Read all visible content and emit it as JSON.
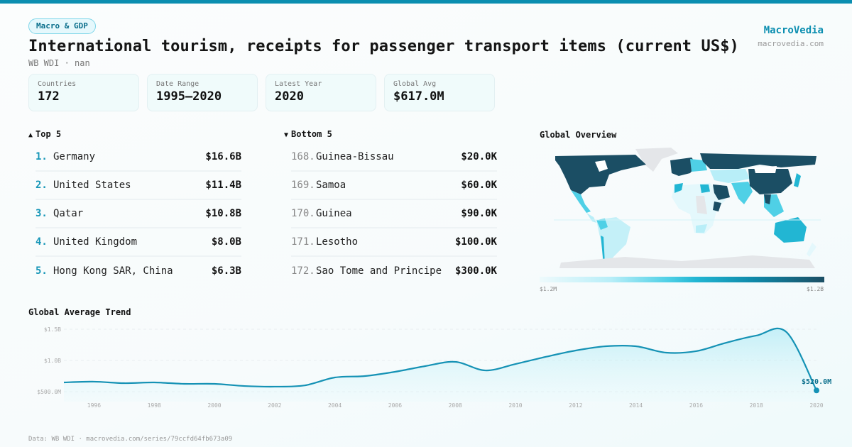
{
  "header": {
    "category_tag": "Macro & GDP",
    "title": "International tourism, receipts for passenger transport items (current US$)",
    "subtitle": "WB WDI · nan",
    "brand_name": "MacroVedia",
    "brand_url": "macrovedia.com"
  },
  "stats": [
    {
      "label": "Countries",
      "value": "172"
    },
    {
      "label": "Date Range",
      "value": "1995–2020"
    },
    {
      "label": "Latest Year",
      "value": "2020"
    },
    {
      "label": "Global Avg",
      "value": "$617.0M"
    }
  ],
  "top5": {
    "heading": "Top 5",
    "arrow": "▲",
    "items": [
      {
        "rank": "1.",
        "name": "Germany",
        "value": "$16.6B"
      },
      {
        "rank": "2.",
        "name": "United States",
        "value": "$11.4B"
      },
      {
        "rank": "3.",
        "name": "Qatar",
        "value": "$10.8B"
      },
      {
        "rank": "4.",
        "name": "United Kingdom",
        "value": "$8.0B"
      },
      {
        "rank": "5.",
        "name": "Hong Kong SAR, China",
        "value": "$6.3B"
      }
    ]
  },
  "bottom5": {
    "heading": "Bottom 5",
    "arrow": "▼",
    "items": [
      {
        "rank": "168.",
        "name": "Guinea-Bissau",
        "value": "$20.0K"
      },
      {
        "rank": "169.",
        "name": "Samoa",
        "value": "$60.0K"
      },
      {
        "rank": "170.",
        "name": "Guinea",
        "value": "$90.0K"
      },
      {
        "rank": "171.",
        "name": "Lesotho",
        "value": "$100.0K"
      },
      {
        "rank": "172.",
        "name": "Sao Tome and Principe",
        "value": "$300.0K"
      }
    ]
  },
  "map": {
    "title": "Global Overview",
    "legend_min": "$1.2M",
    "legend_max": "$1.2B",
    "colors": {
      "low": "#eefafc",
      "mid": "#22b6d3",
      "high": "#1b4e64",
      "nodata": "#e4e6e9"
    }
  },
  "trend": {
    "title": "Global Average Trend",
    "end_label": "$520.0M"
  },
  "footer": {
    "text": "Data: WB WDI · macrovedia.com/series/79ccfd64fb673a09"
  },
  "colors": {
    "accent": "#0b8eb0",
    "line": "#1592b5",
    "rank_top": "#1696b7"
  },
  "chart_data": {
    "type": "line",
    "title": "Global Average Trend",
    "xlabel": "",
    "ylabel": "",
    "x": [
      1995,
      1996,
      1997,
      1998,
      1999,
      2000,
      2001,
      2002,
      2003,
      2004,
      2005,
      2006,
      2007,
      2008,
      2009,
      2010,
      2011,
      2012,
      2013,
      2014,
      2015,
      2016,
      2017,
      2018,
      2019,
      2020
    ],
    "series": [
      {
        "name": "Global Average (US$ M)",
        "values": [
          648,
          660,
          636,
          648,
          625,
          625,
          590,
          580,
          600,
          727,
          750,
          818,
          909,
          977,
          840,
          943,
          1057,
          1159,
          1227,
          1227,
          1125,
          1148,
          1284,
          1398,
          1455,
          520
        ]
      }
    ],
    "y_ticks": [
      "$500.0M",
      "$1.0B",
      "$1.5B"
    ],
    "x_ticks": [
      "1996",
      "1998",
      "2000",
      "2002",
      "2004",
      "2006",
      "2008",
      "2010",
      "2012",
      "2014",
      "2016",
      "2018",
      "2020"
    ],
    "ylim": [
      420,
      1550
    ],
    "grid": true,
    "annotations": [
      {
        "x": 2020,
        "label": "$520.0M"
      }
    ]
  }
}
